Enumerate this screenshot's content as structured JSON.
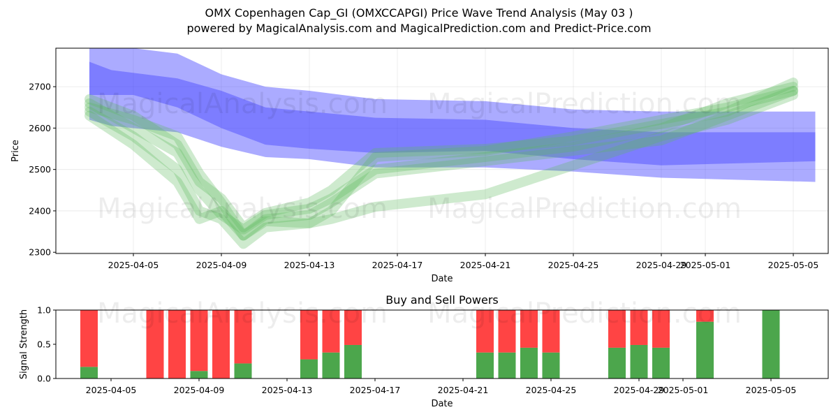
{
  "title_line1": "OMX Copenhagen Cap_GI (OMXCCAPGI) Price Wave Trend Analysis (May 03 )",
  "title_line2": "powered by MagicalAnalysis.com and MagicalPrediction.com and Predict-Price.com",
  "watermark_left": "MagicalAnalysis.com",
  "watermark_right": "MagicalPrediction.com",
  "colors": {
    "bear_wave": "#4444ff",
    "bull_wave": "#5cb85c",
    "sell": "#ff4444",
    "buy": "#4ca64c"
  },
  "chart_data": [
    {
      "type": "area",
      "xlabel": "Date",
      "ylabel": "Price",
      "ylim": [
        2297,
        2793
      ],
      "yticks": [
        2300,
        2400,
        2500,
        2600,
        2700
      ],
      "xticks": [
        "2025-04-05",
        "2025-04-09",
        "2025-04-13",
        "2025-04-17",
        "2025-04-21",
        "2025-04-25",
        "2025-04-29",
        "2025-05-01",
        "2025-05-05"
      ],
      "grid": true,
      "series": [
        {
          "kind": "bear",
          "x": [
            "2025-04-03",
            "2025-04-04",
            "2025-04-07",
            "2025-04-09",
            "2025-04-11",
            "2025-04-13",
            "2025-04-16",
            "2025-04-21",
            "2025-04-25",
            "2025-04-29",
            "2025-05-06"
          ],
          "low": [
            2620,
            2605,
            2590,
            2555,
            2530,
            2525,
            2505,
            2505,
            2495,
            2480,
            2470
          ],
          "high": [
            2760,
            2740,
            2720,
            2690,
            2650,
            2640,
            2625,
            2620,
            2600,
            2590,
            2590
          ]
        },
        {
          "kind": "bear",
          "x": [
            "2025-04-03",
            "2025-04-05",
            "2025-04-07",
            "2025-04-09",
            "2025-04-11",
            "2025-04-13",
            "2025-04-16",
            "2025-04-21",
            "2025-04-25",
            "2025-04-29",
            "2025-05-06"
          ],
          "low": [
            2680,
            2680,
            2650,
            2600,
            2560,
            2550,
            2540,
            2545,
            2525,
            2510,
            2520
          ],
          "high": [
            2793,
            2793,
            2780,
            2730,
            2700,
            2690,
            2670,
            2665,
            2645,
            2640,
            2640
          ]
        },
        {
          "kind": "bull",
          "x": [
            "2025-04-03",
            "2025-04-05",
            "2025-04-07",
            "2025-04-08",
            "2025-04-09",
            "2025-04-10",
            "2025-04-11",
            "2025-04-13",
            "2025-04-14",
            "2025-04-16",
            "2025-04-21",
            "2025-04-25",
            "2025-04-29",
            "2025-05-02",
            "2025-05-05"
          ],
          "values": [
            2650,
            2620,
            2580,
            2490,
            2420,
            2340,
            2375,
            2370,
            2380,
            2410,
            2440,
            2510,
            2580,
            2620,
            2680
          ]
        },
        {
          "kind": "bull",
          "x": [
            "2025-04-03",
            "2025-04-05",
            "2025-04-07",
            "2025-04-08",
            "2025-04-09",
            "2025-04-10",
            "2025-04-11",
            "2025-04-13",
            "2025-04-14",
            "2025-04-16",
            "2025-04-21",
            "2025-04-25",
            "2025-04-29",
            "2025-05-02",
            "2025-05-05"
          ],
          "values": [
            2660,
            2600,
            2540,
            2450,
            2390,
            2355,
            2390,
            2405,
            2430,
            2500,
            2530,
            2555,
            2600,
            2660,
            2700
          ]
        },
        {
          "kind": "bull",
          "x": [
            "2025-04-03",
            "2025-04-05",
            "2025-04-07",
            "2025-04-08",
            "2025-04-09",
            "2025-04-10",
            "2025-04-11",
            "2025-04-13",
            "2025-04-14",
            "2025-04-16",
            "2025-04-21",
            "2025-04-25",
            "2025-04-29",
            "2025-05-02",
            "2025-05-05"
          ],
          "values": [
            2640,
            2580,
            2500,
            2400,
            2380,
            2320,
            2360,
            2370,
            2400,
            2530,
            2545,
            2580,
            2620,
            2650,
            2690
          ]
        },
        {
          "kind": "bull",
          "x": [
            "2025-04-03",
            "2025-04-05",
            "2025-04-07",
            "2025-04-08",
            "2025-04-09",
            "2025-04-10",
            "2025-04-11",
            "2025-04-13",
            "2025-04-14",
            "2025-04-16",
            "2025-04-21",
            "2025-04-25",
            "2025-04-29",
            "2025-05-02",
            "2025-05-05"
          ],
          "values": [
            2670,
            2630,
            2560,
            2470,
            2430,
            2360,
            2395,
            2420,
            2450,
            2540,
            2550,
            2570,
            2610,
            2640,
            2710
          ]
        },
        {
          "kind": "bull",
          "x": [
            "2025-04-03",
            "2025-04-05",
            "2025-04-07",
            "2025-04-08",
            "2025-04-09",
            "2025-04-10",
            "2025-04-11",
            "2025-04-13",
            "2025-04-14",
            "2025-04-16",
            "2025-04-21",
            "2025-04-25",
            "2025-04-29",
            "2025-05-02",
            "2025-05-05"
          ],
          "values": [
            2630,
            2560,
            2470,
            2380,
            2400,
            2340,
            2380,
            2390,
            2420,
            2490,
            2520,
            2545,
            2570,
            2630,
            2690
          ]
        }
      ]
    },
    {
      "type": "bar",
      "title": "Buy and Sell Powers",
      "xlabel": "Date",
      "ylabel": "Signal Strength",
      "ylim": [
        0,
        1.0
      ],
      "yticks": [
        "0.0",
        "0.5",
        "1.0"
      ],
      "xticks": [
        "2025-04-05",
        "2025-04-09",
        "2025-04-13",
        "2025-04-17",
        "2025-04-21",
        "2025-04-25",
        "2025-04-29",
        "2025-05-01",
        "2025-05-05"
      ],
      "categories": [
        "2025-04-04",
        "2025-04-07",
        "2025-04-08",
        "2025-04-09",
        "2025-04-10",
        "2025-04-11",
        "2025-04-14",
        "2025-04-15",
        "2025-04-16",
        "2025-04-22",
        "2025-04-23",
        "2025-04-24",
        "2025-04-25",
        "2025-04-28",
        "2025-04-29",
        "2025-04-30",
        "2025-05-02",
        "2025-05-05"
      ],
      "series": [
        {
          "name": "Buy",
          "values": [
            0.17,
            0.0,
            0.0,
            0.11,
            0.0,
            0.22,
            0.28,
            0.38,
            0.49,
            0.38,
            0.38,
            0.45,
            0.38,
            0.45,
            0.49,
            0.45,
            0.83,
            1.0
          ]
        },
        {
          "name": "Sell",
          "values": [
            0.83,
            1.0,
            1.0,
            0.89,
            1.0,
            0.78,
            0.72,
            0.62,
            0.51,
            0.62,
            0.62,
            0.55,
            0.62,
            0.55,
            0.51,
            0.55,
            0.17,
            0.0
          ]
        }
      ]
    }
  ]
}
